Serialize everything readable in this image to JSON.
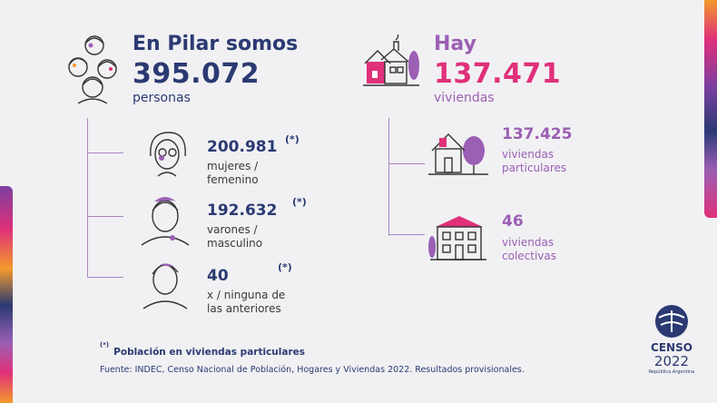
{
  "population": {
    "title": "En Pilar somos",
    "total": "395.072",
    "unit": "personas",
    "items": [
      {
        "value": "200.981",
        "mark": "(*)",
        "label_line1": "mujeres /",
        "label_line2": "femenino"
      },
      {
        "value": "192.632",
        "mark": "(*)",
        "label_line1": "varones /",
        "label_line2": "masculino"
      },
      {
        "value": "40",
        "mark": "(*)",
        "label_line1": "x / ninguna de",
        "label_line2": "las anteriores"
      }
    ]
  },
  "housing": {
    "title": "Hay",
    "total": "137.471",
    "unit": "viviendas",
    "items": [
      {
        "value": "137.425",
        "label_line1": "viviendas",
        "label_line2": "particulares"
      },
      {
        "value": "46",
        "label_line1": "viviendas",
        "label_line2": "colectivas"
      }
    ]
  },
  "footnote": {
    "mark": "(*)",
    "text": "Población en viviendas particulares"
  },
  "source": "Fuente: INDEC, Censo Nacional de Población, Hogares y Viviendas 2022. Resultados provisionales.",
  "logo": {
    "line1": "CENSO",
    "line2": "2022",
    "line3": "República Argentina"
  },
  "colors": {
    "navy": "#2b3a73",
    "magenta": "#e0307a",
    "violet": "#9b5fb4",
    "orange": "#f39a2b"
  },
  "icons": [
    "people-group-icon",
    "woman-face-icon",
    "man-face-icon",
    "person-face-icon",
    "house-chimney-icon",
    "house-tree-icon",
    "building-icon"
  ]
}
